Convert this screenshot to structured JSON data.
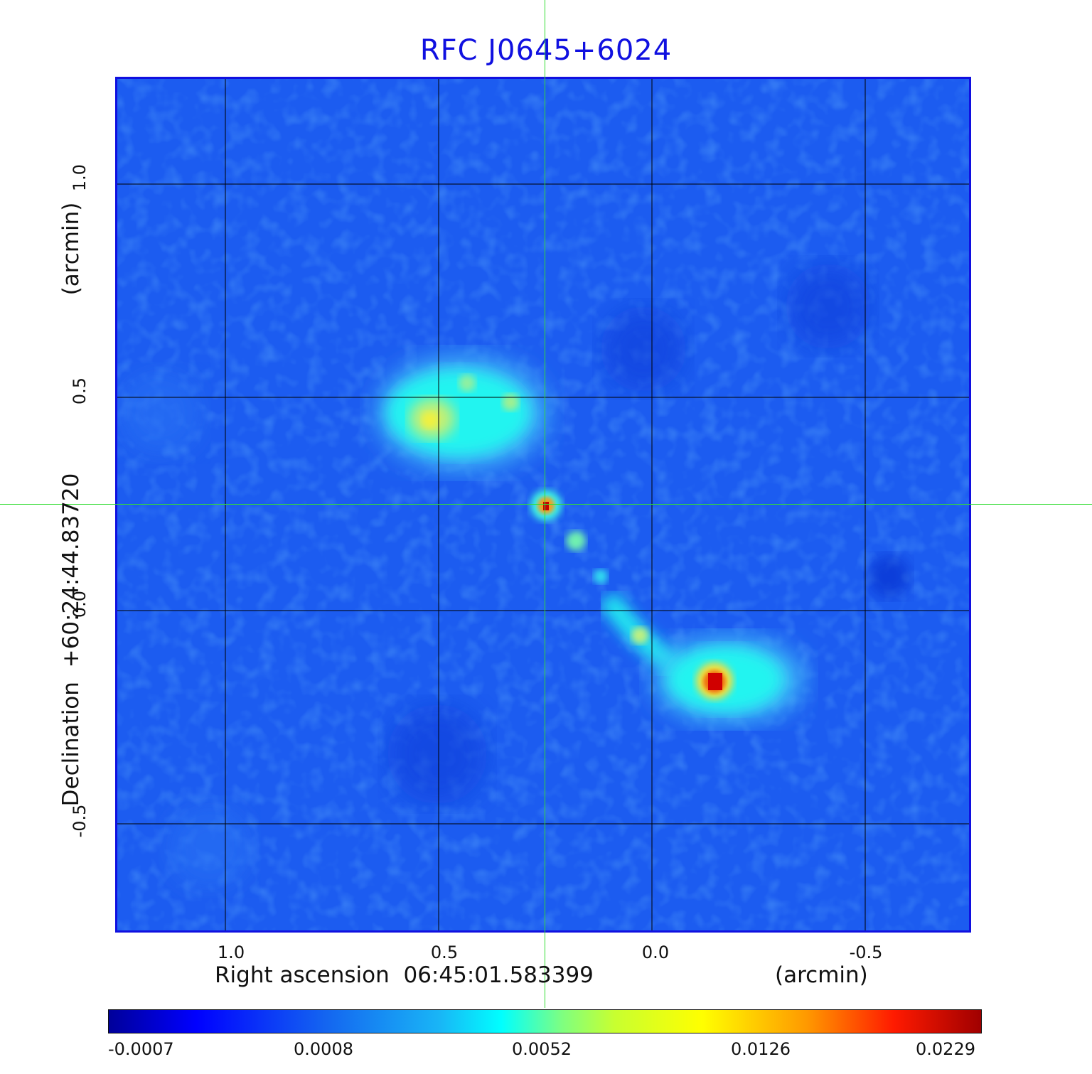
{
  "title": "RFC J0645+6024",
  "x_axis": {
    "label": "Right ascension  06:45:01.583399",
    "unit": "(arcmin)",
    "ticks": [
      "1.0",
      "0.5",
      "0.0",
      "-0.5"
    ]
  },
  "y_axis": {
    "label": "Declination  +60:24:44.83720",
    "unit": "(arcmin)",
    "ticks": [
      "1.0",
      "0.5",
      "0.0",
      "-0.5"
    ]
  },
  "colorbar": {
    "ticks": [
      "-0.0007",
      "0.0008",
      "0.0052",
      "0.0126",
      "0.0229"
    ],
    "colormap": "jet"
  },
  "colors": {
    "title": "#1010e0",
    "frame": "#1010e0",
    "crosshair": "#33dd33",
    "grid": "#000000"
  }
}
